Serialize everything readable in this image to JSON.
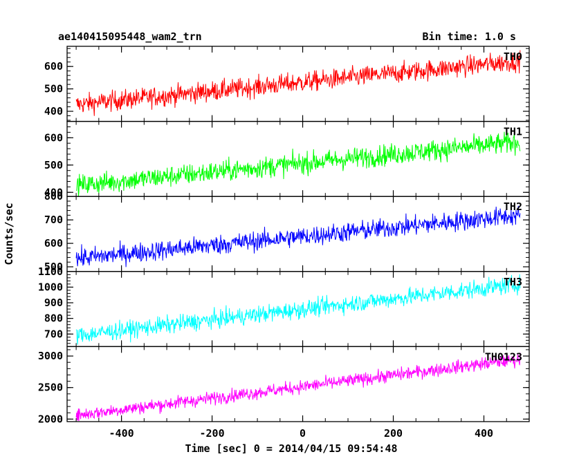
{
  "header": {
    "title": "ae140415095448_wam2_trn",
    "bin_time": "Bin time: 1.0 s"
  },
  "chart_data": {
    "type": "line",
    "xlabel": "Time [sec] 0 = 2014/04/15 09:54:48",
    "ylabel": "Counts/sec",
    "xlim": [
      -520,
      500
    ],
    "x_ticks": [
      -400,
      -200,
      0,
      200,
      400
    ],
    "x_range": [
      -500,
      480
    ],
    "panels": [
      {
        "name": "TH0",
        "color": "#ff0000",
        "ylim": [
          355,
          690
        ],
        "y_ticks": [
          400,
          500,
          600
        ],
        "start": 430,
        "end": 625,
        "noise": 32
      },
      {
        "name": "TH1",
        "color": "#00ff00",
        "ylim": [
          385,
          660
        ],
        "y_ticks": [
          400,
          500,
          600
        ],
        "start": 425,
        "end": 585,
        "noise": 28
      },
      {
        "name": "TH2",
        "color": "#0000ff",
        "ylim": [
          480,
          800
        ],
        "y_ticks": [
          500,
          600,
          700,
          800
        ],
        "start": 535,
        "end": 720,
        "noise": 30
      },
      {
        "name": "TH3",
        "color": "#00ffff",
        "ylim": [
          620,
          1100
        ],
        "y_ticks": [
          700,
          800,
          900,
          1000,
          1100
        ],
        "start": 690,
        "end": 1020,
        "noise": 40
      },
      {
        "name": "TH0123",
        "color": "#ff00ff",
        "ylim": [
          1960,
          3150
        ],
        "y_ticks": [
          2000,
          2500,
          3000
        ],
        "start": 2060,
        "end": 2950,
        "noise": 75
      }
    ]
  }
}
